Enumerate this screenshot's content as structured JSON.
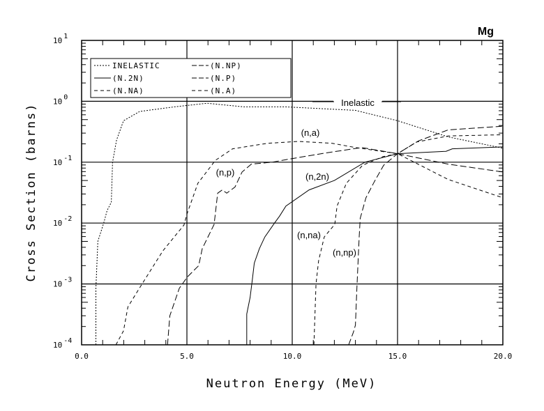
{
  "chart_data": {
    "type": "line",
    "title": "Mg",
    "xlabel": "Neutron Energy (MeV)",
    "ylabel": "Cross Section (barns)",
    "xscale": "linear",
    "yscale": "log",
    "xlim": [
      0,
      20
    ],
    "ylim": [
      0.0001,
      10
    ],
    "grid": true,
    "x_ticks": [
      "0.0",
      "5.0",
      "10.0",
      "15.0",
      "20.0"
    ],
    "y_ticks": [
      {
        "base": "10",
        "exp": "1"
      },
      {
        "base": "10",
        "exp": "0"
      },
      {
        "base": "10",
        "exp": "-1"
      },
      {
        "base": "10",
        "exp": "-2"
      },
      {
        "base": "10",
        "exp": "-3"
      },
      {
        "base": "10",
        "exp": "-4"
      }
    ],
    "legend": {
      "placement": "top-left",
      "entries": [
        "INELASTIC",
        "(N.2N)",
        "(N.NA)",
        "(N.NP)",
        "(N.P)",
        "(N.A)"
      ]
    },
    "series": [
      {
        "name": "INELASTIC",
        "label": "Inelastic",
        "style": "dotted",
        "x": [
          0.68,
          0.68,
          0.77,
          1.05,
          1.21,
          1.41,
          1.47,
          1.66,
          1.99,
          2.76,
          4.4,
          5.96,
          7.7,
          9.7,
          13.0,
          15.0,
          17.4,
          20.0
        ],
        "y": [
          0.0001,
          0.00085,
          0.005,
          0.01,
          0.016,
          0.022,
          0.1,
          0.23,
          0.48,
          0.68,
          0.81,
          0.93,
          0.81,
          0.81,
          0.71,
          0.48,
          0.26,
          0.17
        ]
      },
      {
        "name": "(N.2N)",
        "label": "(n,2n)",
        "style": "solid",
        "x": [
          7.84,
          7.84,
          8.0,
          8.11,
          8.2,
          8.44,
          8.7,
          9.16,
          9.4,
          9.7,
          10.8,
          12.0,
          13.45,
          15.0,
          17.3,
          17.6,
          20.0
        ],
        "y": [
          0.0001,
          0.00032,
          0.0006,
          0.0012,
          0.0022,
          0.0038,
          0.0059,
          0.01,
          0.013,
          0.019,
          0.035,
          0.05,
          0.1,
          0.138,
          0.151,
          0.166,
          0.178
        ]
      },
      {
        "name": "(N.NA)",
        "label": "(n,na)",
        "style": "dashed",
        "x": [
          11.03,
          11.13,
          11.25,
          11.52,
          12.02,
          12.13,
          12.57,
          13.34,
          14.3,
          15.0,
          15.9,
          17.4,
          20.0
        ],
        "y": [
          0.0001,
          0.001,
          0.0024,
          0.0059,
          0.0095,
          0.019,
          0.045,
          0.089,
          0.123,
          0.138,
          0.214,
          0.269,
          0.282
        ]
      },
      {
        "name": "(N.NP)",
        "label": "(n,np)",
        "style": "long-dash",
        "x": [
          12.68,
          12.9,
          13.0,
          13.07,
          13.18,
          13.23,
          13.5,
          13.9,
          14.34,
          15.0,
          16.0,
          17.4,
          20.0
        ],
        "y": [
          0.0001,
          0.00016,
          0.00021,
          0.00085,
          0.0059,
          0.012,
          0.026,
          0.048,
          0.089,
          0.138,
          0.224,
          0.339,
          0.389
        ]
      },
      {
        "name": "(N.P)",
        "label": "(n,p)",
        "style": "long-dash",
        "x": [
          4.08,
          4.19,
          4.64,
          5.02,
          5.56,
          5.73,
          6.29,
          6.46,
          6.68,
          6.89,
          7.28,
          7.62,
          8.06,
          9.05,
          9.7,
          11.5,
          13.3,
          15.0,
          17.4,
          20.0
        ],
        "y": [
          0.0001,
          0.0003,
          0.00085,
          0.0013,
          0.002,
          0.0038,
          0.0095,
          0.031,
          0.035,
          0.031,
          0.039,
          0.069,
          0.093,
          0.1,
          0.11,
          0.14,
          0.174,
          0.138,
          0.093,
          0.069
        ]
      },
      {
        "name": "(N.A)",
        "label": "(n,a)",
        "style": "dashed",
        "x": [
          1.63,
          1.99,
          2.2,
          2.87,
          3.86,
          4.86,
          5.0,
          5.52,
          6.35,
          7.17,
          8.83,
          10.3,
          11.9,
          13.0,
          15.0,
          17.4,
          20.0
        ],
        "y": [
          0.0001,
          0.00017,
          0.00042,
          0.001,
          0.0035,
          0.0093,
          0.014,
          0.045,
          0.107,
          0.166,
          0.204,
          0.219,
          0.204,
          0.174,
          0.138,
          0.052,
          0.026
        ]
      }
    ]
  }
}
